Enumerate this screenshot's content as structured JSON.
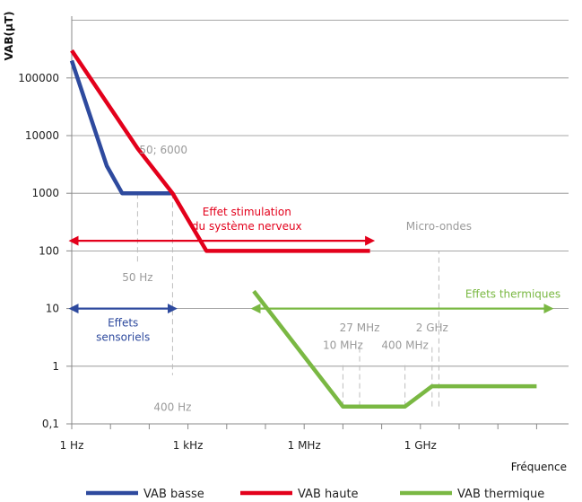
{
  "chart_data": {
    "type": "line",
    "ylabel": "VAB(µT)",
    "xlabel": "Fréquence",
    "x_scale": "log",
    "y_scale": "log",
    "x_ticks": [
      {
        "value": 1,
        "label": "1 Hz"
      },
      {
        "value": 1000,
        "label": "1 kHz"
      },
      {
        "value": 1000000,
        "label": "1 MHz"
      },
      {
        "value": 1000000000,
        "label": "1 GHz"
      }
    ],
    "y_ticks": [
      {
        "value": 0.1,
        "label": "0,1"
      },
      {
        "value": 1,
        "label": "1"
      },
      {
        "value": 10,
        "label": "10"
      },
      {
        "value": 100,
        "label": "100"
      },
      {
        "value": 1000,
        "label": "1000"
      },
      {
        "value": 10000,
        "label": "10000"
      },
      {
        "value": 100000,
        "label": "100000"
      }
    ],
    "ylim": [
      0.1,
      1000000
    ],
    "xlim": [
      1,
      10000000000000
    ],
    "grid": "horizontal",
    "legend_position": "bottom",
    "series": [
      {
        "name": "VAB basse",
        "color": "#2e4a9e",
        "points": [
          [
            1,
            200000
          ],
          [
            8,
            3000
          ],
          [
            20,
            1000
          ],
          [
            50,
            1000
          ],
          [
            400,
            1000
          ]
        ]
      },
      {
        "name": "VAB haute",
        "color": "#e3001b",
        "points": [
          [
            1,
            300000
          ],
          [
            50,
            6000
          ],
          [
            400,
            1000
          ],
          [
            3000,
            100
          ],
          [
            50000000,
            100
          ]
        ]
      },
      {
        "name": "VAB thermique",
        "color": "#7ab843",
        "points": [
          [
            50000,
            20
          ],
          [
            10000000,
            0.2
          ],
          [
            400000000,
            0.2
          ],
          [
            2000000000,
            0.45
          ],
          [
            1000000000000,
            0.45
          ]
        ]
      }
    ],
    "annotations": [
      {
        "text": "50; 6000",
        "x": 50,
        "y": 6000,
        "style": "gray"
      },
      {
        "text": "50 Hz",
        "x": 50,
        "y": 40,
        "style": "gray"
      },
      {
        "text": "400 Hz",
        "x": 400,
        "y": 0.3,
        "style": "gray"
      },
      {
        "text": "10 MHz",
        "x": 10000000,
        "y": 2,
        "style": "gray"
      },
      {
        "text": "27 MHz",
        "x": 27000000,
        "y": 4,
        "style": "gray"
      },
      {
        "text": "400 MHz",
        "x": 400000000,
        "y": 2,
        "style": "gray"
      },
      {
        "text": "2 GHz",
        "x": 2000000000,
        "y": 4,
        "style": "gray"
      },
      {
        "text": "Micro-ondes",
        "x": 3000000000,
        "y": 200,
        "style": "gray"
      }
    ],
    "ranges": [
      {
        "text": [
          "Effet stimulation",
          "du système nerveux"
        ],
        "x0": 1,
        "x1": 50000000,
        "y": 150,
        "color": "#e3001b"
      },
      {
        "text": [
          "Effets",
          "sensoriels"
        ],
        "x0": 1,
        "x1": 400,
        "y": 10,
        "color": "#2e4a9e"
      },
      {
        "text": [
          "Effets thermiques"
        ],
        "x0": 50000,
        "x1": 10000000000000,
        "y": 10,
        "color": "#7ab843"
      }
    ],
    "guides": [
      {
        "x": 50,
        "y0": 1000,
        "y1": 60
      },
      {
        "x": 400,
        "y0": 1000,
        "y1": 0.7
      },
      {
        "x": 10000000,
        "y0": 0.2,
        "y1": 1.2
      },
      {
        "x": 27000000,
        "y0": 0.2,
        "y1": 2.4
      },
      {
        "x": 400000000,
        "y0": 0.2,
        "y1": 1.2
      },
      {
        "x": 2000000000,
        "y0": 0.2,
        "y1": 2.4
      },
      {
        "x": 3000000000,
        "y0": 0.2,
        "y1": 100
      }
    ]
  }
}
